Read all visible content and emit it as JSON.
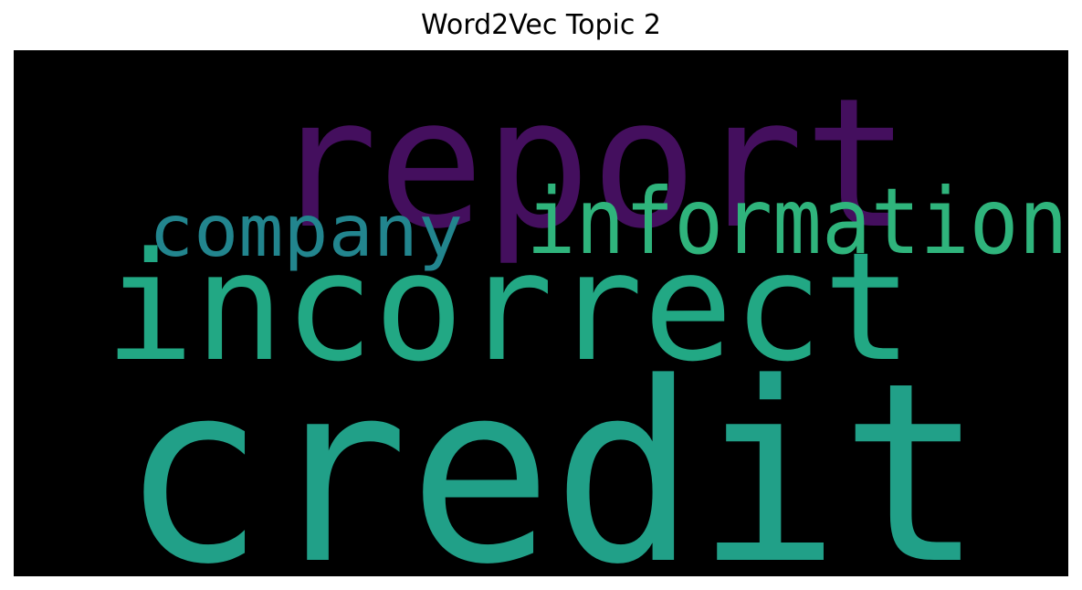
{
  "chart_data": {
    "type": "wordcloud",
    "title": "Word2Vec Topic 2",
    "background": "#000000",
    "colormap": "viridis",
    "words": [
      {
        "text": "credit",
        "weight": 1.0,
        "color": "#21a088"
      },
      {
        "text": "report",
        "weight": 0.72,
        "color": "#440f5e"
      },
      {
        "text": "incorrect",
        "weight": 0.6,
        "color": "#22a884"
      },
      {
        "text": "information",
        "weight": 0.38,
        "color": "#2fb47c"
      },
      {
        "text": "company",
        "weight": 0.3,
        "color": "#22858e"
      }
    ]
  }
}
